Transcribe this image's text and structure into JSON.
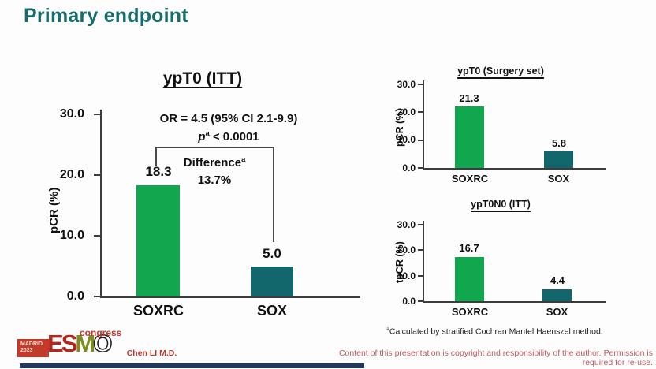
{
  "slide": {
    "title": "Primary endpoint",
    "presenter": "Chen LI M.D.",
    "copyright_notice": "Content of this presentation is copyright and responsibility of the author. Permission is required for re-use.",
    "footnote": {
      "sup": "a",
      "text": "Calculated by stratified Cochran Mantel Haenszel method."
    },
    "logo": {
      "city": "MADRID",
      "year": "2023",
      "letters": [
        "E",
        "S",
        "M",
        "O"
      ],
      "word": "congress"
    }
  },
  "colors": {
    "accent_teal": "#176d6d",
    "bar_green": "#10a74f",
    "bar_teal": "#12676d",
    "logo_red": "#c23b2a",
    "logo_olive": "#7d8c1f",
    "footer_red": "#c05a60",
    "navy_strip": "#1f3864"
  },
  "chart_data": [
    {
      "id": "ypt0-itt",
      "type": "bar",
      "title": "ypT0 (ITT)",
      "ylabel": "pCR (%)",
      "xlabel": "",
      "ylim": [
        0,
        30
      ],
      "yticks": [
        "0.0",
        "10.0",
        "20.0",
        "30.0"
      ],
      "grid": false,
      "legend": "none",
      "categories": [
        "SOXRC",
        "SOX"
      ],
      "values": [
        18.3,
        5.0
      ],
      "value_labels": [
        "18.3",
        "5.0"
      ],
      "bar_colors": [
        "#10a74f",
        "#12676d"
      ],
      "annotations": {
        "or_text": "OR = 4.5 (95% CI 2.1-9.9)",
        "p_symbol": "p",
        "p_sup": "a",
        "p_rest": " < 0.0001",
        "diff_label": "Difference",
        "diff_sup": "a",
        "diff_value": "13.7%"
      }
    },
    {
      "id": "ypt0-surgery-set",
      "type": "bar",
      "title": "ypT0 (Surgery set)",
      "ylabel": "pCR (%)",
      "xlabel": "",
      "ylim": [
        0,
        30
      ],
      "yticks": [
        "0.0",
        "10.0",
        "20.0",
        "30.0"
      ],
      "grid": false,
      "legend": "none",
      "categories": [
        "SOXRC",
        "SOX"
      ],
      "values": [
        21.3,
        5.8
      ],
      "value_labels": [
        "21.3",
        "5.8"
      ],
      "bar_colors": [
        "#10a74f",
        "#12676d"
      ]
    },
    {
      "id": "ypt0n0-itt",
      "type": "bar",
      "title": "ypT0N0 (ITT)",
      "ylabel": "tpCR (%)",
      "xlabel": "",
      "ylim": [
        0,
        30
      ],
      "yticks": [
        "0.0",
        "10.0",
        "20.0",
        "30.0"
      ],
      "grid": false,
      "legend": "none",
      "categories": [
        "SOXRC",
        "SOX"
      ],
      "values": [
        16.7,
        4.4
      ],
      "value_labels": [
        "16.7",
        "4.4"
      ],
      "bar_colors": [
        "#10a74f",
        "#12676d"
      ]
    }
  ]
}
